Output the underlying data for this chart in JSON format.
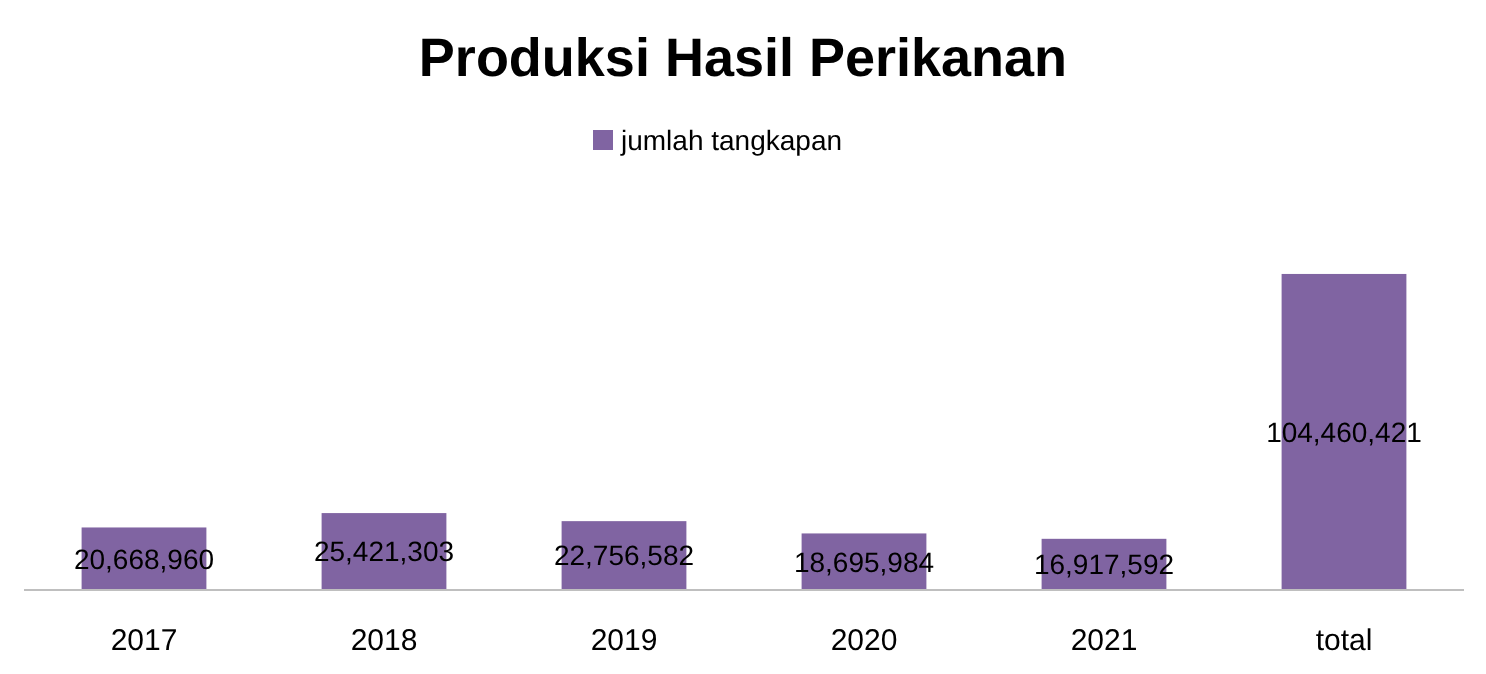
{
  "chart_data": {
    "type": "bar",
    "title": "Produksi Hasil Perikanan",
    "categories": [
      "2017",
      "2018",
      "2019",
      "2020",
      "2021",
      "total"
    ],
    "series": [
      {
        "name": "jumlah tangkapan",
        "color": "#8064a2",
        "values": [
          20668960,
          25421303,
          22756582,
          18695984,
          16917592,
          104460421
        ],
        "value_labels": [
          "20,668,960",
          "25,421,303",
          "22,756,582",
          "18,695,984",
          "16,917,592",
          "104,460,421"
        ]
      }
    ],
    "legend": "top",
    "grid": false
  }
}
